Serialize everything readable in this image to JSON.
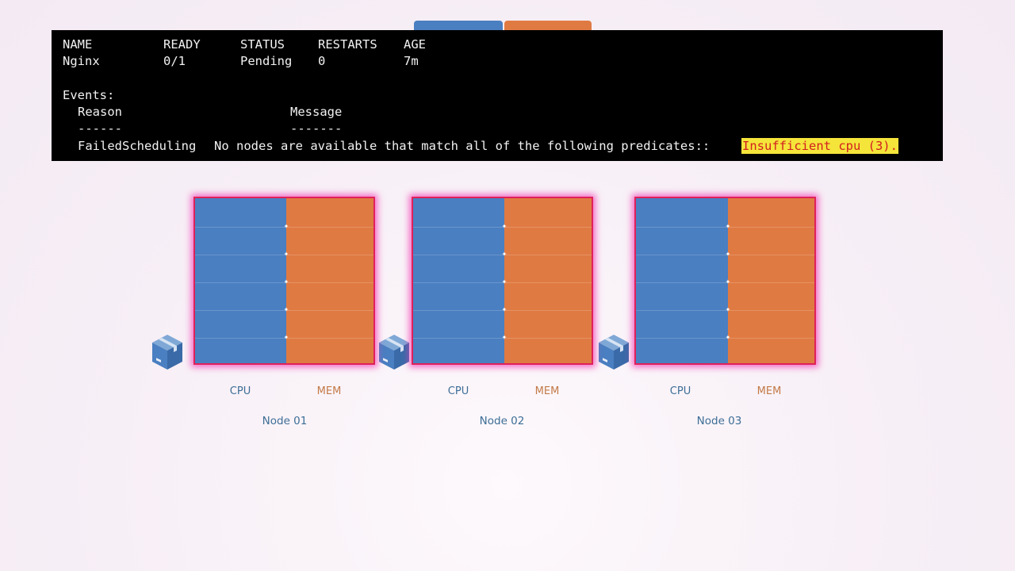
{
  "terminal": {
    "header": {
      "name": "NAME",
      "ready": "READY",
      "status": "STATUS",
      "restarts": "RESTARTS",
      "age": "AGE"
    },
    "row": {
      "name": "Nginx",
      "ready": "0/1",
      "status": "Pending",
      "restarts": "0",
      "age": "7m"
    },
    "events_label": "Events:",
    "events_cols": {
      "reason": "Reason",
      "message": "Message"
    },
    "events_rule": {
      "reason": "------",
      "message": "-------"
    },
    "event": {
      "reason": "FailedScheduling",
      "message": "No nodes are available that match all of the following predicates::",
      "highlight": "Insufficient cpu (3)."
    }
  },
  "nodes": [
    {
      "name": "Node 01",
      "cpu_label": "CPU",
      "mem_label": "MEM"
    },
    {
      "name": "Node 02",
      "cpu_label": "CPU",
      "mem_label": "MEM"
    },
    {
      "name": "Node 03",
      "cpu_label": "CPU",
      "mem_label": "MEM"
    }
  ],
  "colors": {
    "cpu": "#4a7fc1",
    "mem": "#e07a43",
    "highlight_bg": "#f5e43a",
    "highlight_text": "#d21f1f",
    "glow": "#e0215a"
  },
  "icons": {
    "pod": "cube-icon"
  }
}
